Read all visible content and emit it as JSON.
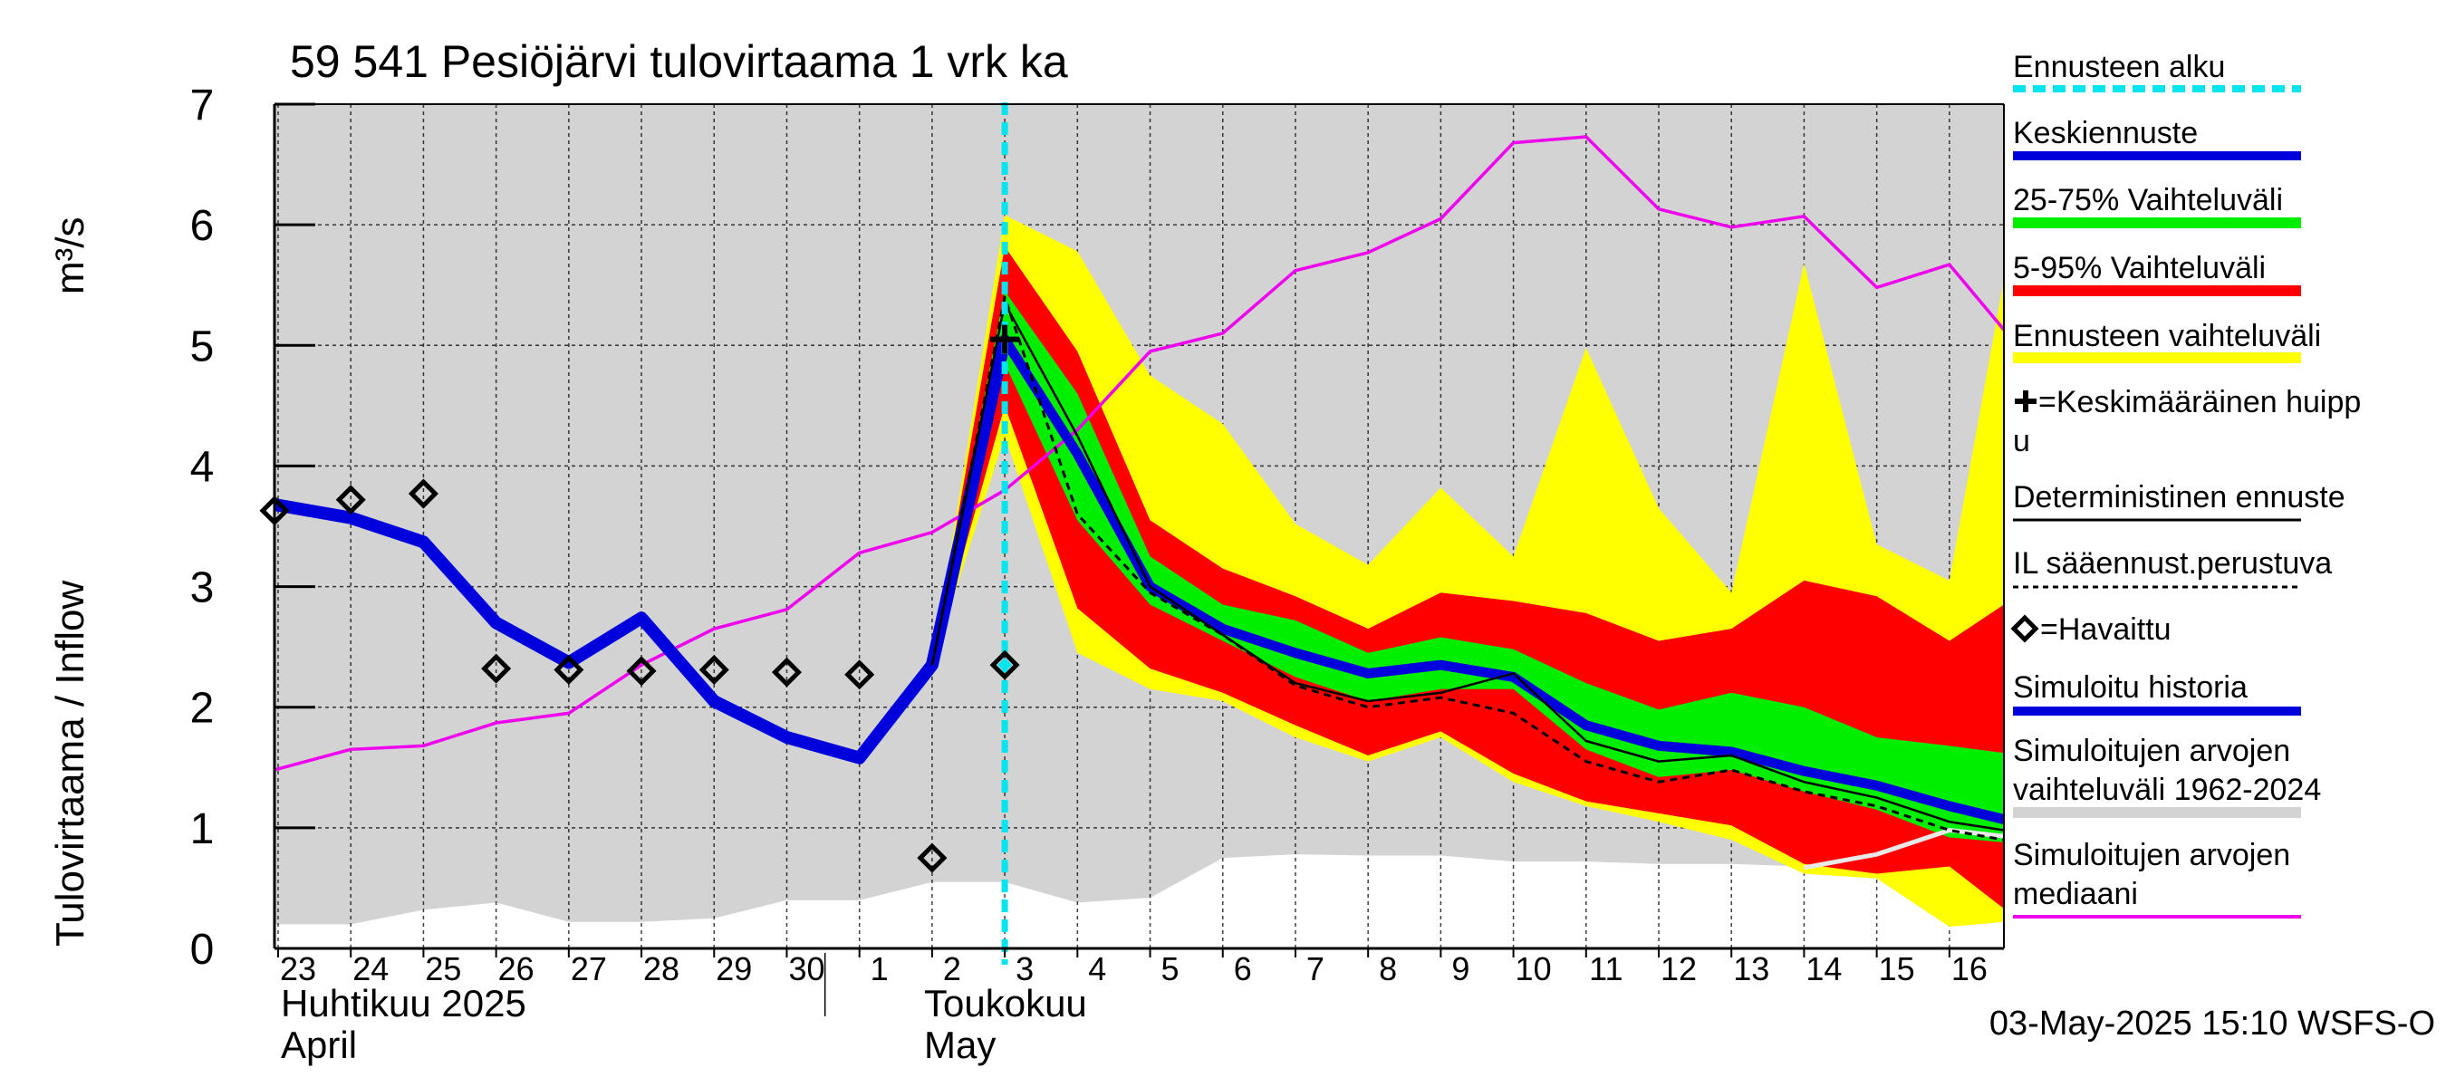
{
  "chart_data": {
    "type": "line",
    "title": "59 541 Pesiöjärvi tulovirtaama 1 vrk ka",
    "ylabel": "Tulovirtaama / Inflow    m³/s",
    "ylabel_main": "Tulovirtaama / Inflow",
    "ylabel_unit": "m³/s",
    "ylim": [
      0,
      7
    ],
    "yticks": [
      "0",
      "1",
      "2",
      "3",
      "4",
      "5",
      "6",
      "7"
    ],
    "x_range": [
      -0.05,
      23.75
    ],
    "day_labels": [
      "23",
      "24",
      "25",
      "26",
      "27",
      "28",
      "29",
      "30",
      "1",
      "2",
      "3",
      "4",
      "5",
      "6",
      "7",
      "8",
      "9",
      "10",
      "11",
      "12",
      "13",
      "14",
      "15",
      "16"
    ],
    "month_labels": {
      "april_fi": "Huhtikuu  2025",
      "april_en": "April",
      "may_fi": "Toukokuu",
      "may_en": "May"
    },
    "forecast_start_day": 10,
    "footer": "03-May-2025 15:10 WSFS-O",
    "colors": {
      "forecast_start": "#00e5ee",
      "mean_forecast": "#0000dd",
      "range_25_75": "#00ee00",
      "range_5_95": "#ff0000",
      "forecast_range": "#ffff00",
      "history_range": "#d3d3d3",
      "median": "#ee00ee",
      "simulated_history": "#0000dd",
      "deterministic": "#000000"
    },
    "legend": [
      {
        "label": "Ennusteen alku",
        "style": "dashed-cyan"
      },
      {
        "label": "Keskiennuste",
        "style": "blue"
      },
      {
        "label": "25-75% Vaihteluväli",
        "style": "green"
      },
      {
        "label": "5-95% Vaihteluväli",
        "style": "red"
      },
      {
        "label": "Ennusteen vaihteluväli",
        "style": "yellow"
      },
      {
        "label": "=Keskimääräinen huipp",
        "label2": "u",
        "style": "plus"
      },
      {
        "label": "Deterministinen ennuste",
        "style": "black"
      },
      {
        "label": "IL sääennust.perustuva",
        "style": "dotted"
      },
      {
        "label": "=Havaittu",
        "style": "diamond"
      },
      {
        "label": "Simuloitu historia",
        "style": "blue"
      },
      {
        "label": "Simuloitujen arvojen",
        "label2": "vaihteluväli 1962-2024",
        "style": "grey"
      },
      {
        "label": "Simuloitujen arvojen",
        "label2": "mediaani",
        "style": "magenta"
      }
    ],
    "history_range": {
      "x": [
        -0.05,
        1,
        2,
        3,
        4,
        5,
        6,
        7,
        8,
        9,
        10,
        11,
        12,
        13,
        14,
        15,
        16,
        17,
        18,
        19,
        20,
        21,
        22,
        23,
        23.75
      ],
      "lower": [
        0.2,
        0.2,
        0.32,
        0.38,
        0.22,
        0.22,
        0.25,
        0.4,
        0.4,
        0.55,
        0.55,
        0.38,
        0.42,
        0.75,
        0.78,
        0.77,
        0.77,
        0.72,
        0.72,
        0.7,
        0.7,
        0.68,
        0.66,
        0.65,
        0.65
      ],
      "upper": [
        7,
        7,
        7,
        7,
        7,
        7,
        7,
        7,
        7,
        7,
        7,
        7,
        7,
        7,
        7,
        7,
        7,
        7,
        7,
        7,
        7,
        7,
        7,
        7,
        7
      ]
    },
    "median": {
      "x": [
        -0.05,
        1,
        2,
        3,
        4,
        5,
        6,
        7,
        8,
        9,
        10,
        11,
        12,
        13,
        14,
        15,
        16,
        17,
        18,
        19,
        20,
        21,
        22,
        23,
        23.75
      ],
      "values": [
        1.48,
        1.65,
        1.68,
        1.87,
        1.95,
        2.35,
        2.65,
        2.81,
        3.28,
        3.45,
        3.8,
        4.3,
        4.95,
        5.1,
        5.62,
        5.77,
        6.05,
        6.68,
        6.73,
        6.13,
        5.98,
        6.07,
        5.48,
        5.67,
        5.13
      ]
    },
    "forecast_range": {
      "x": [
        9,
        10,
        11,
        12,
        13,
        14,
        15,
        16,
        17,
        18,
        19,
        20,
        21,
        22,
        23,
        23.75
      ],
      "lower": [
        2.35,
        4.25,
        2.45,
        2.15,
        2.05,
        1.75,
        1.55,
        1.75,
        1.38,
        1.18,
        1.05,
        0.9,
        0.62,
        0.58,
        0.18,
        0.22
      ],
      "upper": [
        2.35,
        6.08,
        5.78,
        4.75,
        4.35,
        3.52,
        3.18,
        3.82,
        3.25,
        4.98,
        3.65,
        2.95,
        5.68,
        3.35,
        3.05,
        5.55
      ]
    },
    "range_5_95": {
      "x": [
        9,
        10,
        11,
        12,
        13,
        14,
        15,
        16,
        17,
        18,
        19,
        20,
        21,
        22,
        23,
        23.75
      ],
      "lower": [
        2.35,
        4.5,
        2.82,
        2.32,
        2.12,
        1.85,
        1.6,
        1.8,
        1.45,
        1.22,
        1.12,
        1.02,
        0.7,
        0.62,
        0.68,
        0.33
      ],
      "upper": [
        2.35,
        5.82,
        4.95,
        3.55,
        3.15,
        2.92,
        2.65,
        2.95,
        2.88,
        2.78,
        2.55,
        2.65,
        3.05,
        2.92,
        2.55,
        2.85
      ]
    },
    "range_25_75": {
      "x": [
        9,
        10,
        11,
        12,
        13,
        14,
        15,
        16,
        17,
        18,
        19,
        20,
        21,
        22,
        23,
        23.75
      ],
      "lower": [
        2.35,
        4.85,
        3.55,
        2.85,
        2.55,
        2.25,
        2.05,
        2.15,
        2.15,
        1.65,
        1.42,
        1.48,
        1.3,
        1.15,
        0.92,
        0.88
      ],
      "upper": [
        2.35,
        5.45,
        4.6,
        3.25,
        2.85,
        2.72,
        2.45,
        2.58,
        2.48,
        2.2,
        1.98,
        2.12,
        2.0,
        1.75,
        1.68,
        1.62
      ]
    },
    "mean_forecast": {
      "x": [
        9,
        10,
        11,
        12,
        13,
        14,
        15,
        16,
        17,
        18,
        19,
        20,
        21,
        22,
        23,
        23.75
      ],
      "values": [
        2.35,
        5.05,
        4.1,
        3.0,
        2.65,
        2.45,
        2.28,
        2.35,
        2.25,
        1.85,
        1.68,
        1.63,
        1.47,
        1.35,
        1.18,
        1.07
      ]
    },
    "deterministic": {
      "x": [
        9,
        10,
        11,
        12,
        13,
        14,
        15,
        16,
        17,
        18,
        19,
        20,
        21,
        22,
        23,
        23.75
      ],
      "values": [
        2.35,
        5.35,
        4.25,
        3.0,
        2.6,
        2.2,
        2.05,
        2.12,
        2.28,
        1.72,
        1.55,
        1.6,
        1.38,
        1.25,
        1.05,
        0.98
      ]
    },
    "il_forecast": {
      "x": [
        9,
        10,
        11,
        12,
        13,
        14,
        15,
        16,
        17,
        18,
        19,
        20,
        21,
        22,
        23,
        23.75
      ],
      "values": [
        2.35,
        5.4,
        3.6,
        2.95,
        2.6,
        2.18,
        2.0,
        2.08,
        1.95,
        1.55,
        1.38,
        1.48,
        1.3,
        1.18,
        0.98,
        0.9
      ]
    },
    "simulated_history": {
      "x": [
        -0.05,
        1,
        2,
        3,
        4,
        5,
        6,
        7,
        8,
        9,
        10
      ],
      "values": [
        3.68,
        3.57,
        3.37,
        2.7,
        2.37,
        2.74,
        2.05,
        1.75,
        1.58,
        2.35,
        5.05
      ]
    },
    "lower_grey_line": {
      "x": [
        21,
        22,
        23,
        23.75
      ],
      "values": [
        0.67,
        0.78,
        0.98,
        0.93
      ]
    },
    "observed": {
      "x": [
        -0.05,
        1,
        2,
        3,
        4,
        5,
        6,
        7,
        8,
        9,
        10
      ],
      "values": [
        3.63,
        3.72,
        3.77,
        2.32,
        2.31,
        2.3,
        2.31,
        2.29,
        2.27,
        0.75,
        2.35
      ]
    },
    "mean_peak": {
      "x": 10,
      "value": 5.05
    }
  }
}
